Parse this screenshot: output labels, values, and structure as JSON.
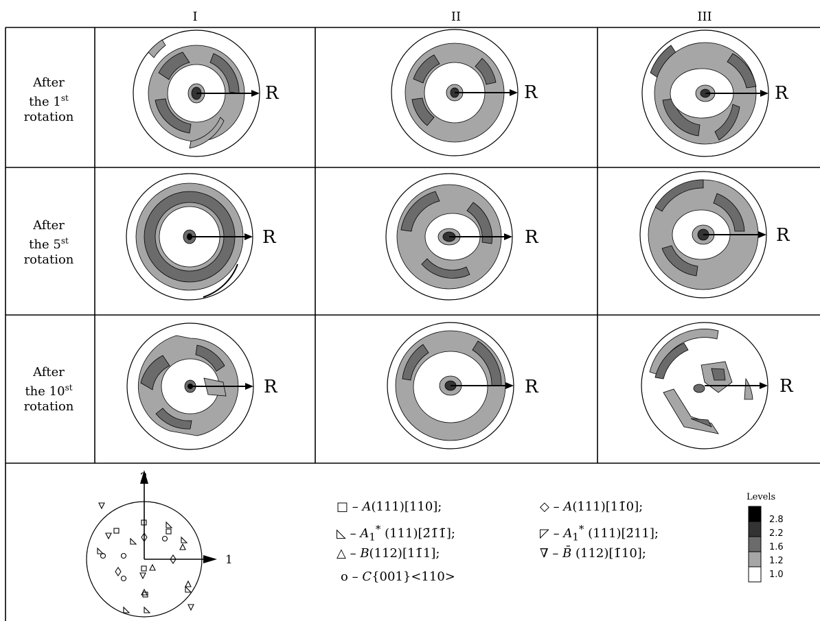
{
  "columns": [
    "I",
    "II",
    "III"
  ],
  "rows": [
    {
      "line1": "After",
      "line2_pre": "the 1",
      "sup": "st",
      "line3": "rotation"
    },
    {
      "line1": "After",
      "line2_pre": "the 5",
      "sup": "st",
      "line3": "rotation"
    },
    {
      "line1": "After",
      "line2_pre": "the 10",
      "sup": "st",
      "line3": "rotation"
    }
  ],
  "direction_label": "R",
  "axis_labels": {
    "vertical": "2",
    "horizontal": "1"
  },
  "legend": {
    "c1": [
      {
        "sym": "square",
        "pre": "– ",
        "name": "A",
        "sub": "",
        "star": "",
        "idx": "(111)[110];"
      },
      {
        "sym": "tri-right",
        "pre": "– ",
        "name": "A",
        "sub": "1",
        "star": "*",
        "idx": " (111)[2̄1̄1̄];"
      },
      {
        "sym": "tri-up",
        "pre": "– ",
        "name": "B",
        "sub": "",
        "star": "",
        "idx": "(112)[11̄1];"
      },
      {
        "sym": "circle",
        "pre": "– ",
        "name": "C",
        "sub": "",
        "star": "",
        "idx": "{001}<110>"
      }
    ],
    "c2": [
      {
        "sym": "diamond",
        "pre": "– ",
        "name": "A",
        "sub": "",
        "star": "",
        "idx": "(111)[11̄0];"
      },
      {
        "sym": "tri-left",
        "pre": "– ",
        "name": "A",
        "sub": "1",
        "star": "*",
        "idx": " (111)[2̄11];"
      },
      {
        "sym": "tri-down",
        "pre": "– ",
        "name": "B̄",
        "sub": "",
        "star": "",
        "idx": " (112)[1̄10];"
      }
    ]
  },
  "levels": {
    "title": "Levels",
    "values": [
      "2.8",
      "2.2",
      "1.6",
      "1.2",
      "1.0"
    ],
    "colors": [
      "#000000",
      "#333333",
      "#6b6b6b",
      "#a6a6a6",
      "#ffffff"
    ]
  }
}
